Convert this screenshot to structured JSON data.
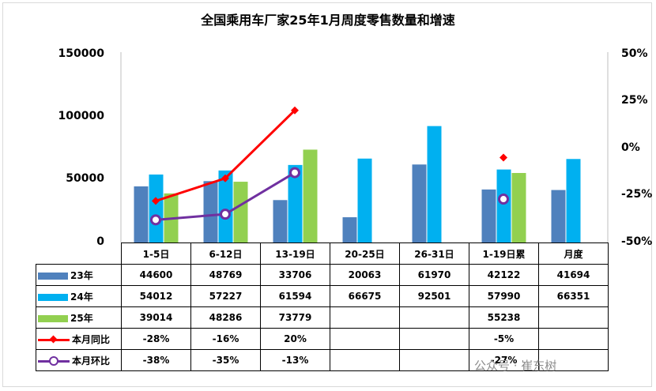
{
  "title": "全国乘用车厂家25年1月周度零售数量和增速",
  "colors": {
    "y23": "#4f81bd",
    "y24": "#00b0f0",
    "y25": "#92d050",
    "yoy": "#ff0000",
    "mom": "#7030a0"
  },
  "chart_data": {
    "type": "bar",
    "categories": [
      "1-5日",
      "6-12日",
      "13-19日",
      "20-25日",
      "26-31日",
      "1-19日累",
      "月度"
    ],
    "series": [
      {
        "name": "23年",
        "kind": "bar",
        "axis": "left",
        "values": [
          44600,
          48769,
          33706,
          20063,
          61970,
          42122,
          41694
        ],
        "labels": [
          "44600",
          "48769",
          "33706",
          "20063",
          "61970",
          "42122",
          "41694"
        ]
      },
      {
        "name": "24年",
        "kind": "bar",
        "axis": "left",
        "values": [
          54012,
          57227,
          61594,
          66675,
          92501,
          57990,
          66351
        ],
        "labels": [
          "54012",
          "57227",
          "61594",
          "66675",
          "92501",
          "57990",
          "66351"
        ]
      },
      {
        "name": "25年",
        "kind": "bar",
        "axis": "left",
        "values": [
          39014,
          48286,
          73779,
          null,
          null,
          55238,
          null
        ],
        "labels": [
          "39014",
          "48286",
          "73779",
          "",
          "",
          "55238",
          ""
        ]
      },
      {
        "name": "本月同比",
        "kind": "line",
        "axis": "right",
        "values": [
          -28,
          -16,
          20,
          null,
          null,
          -5,
          null
        ],
        "labels": [
          "-28%",
          "-16%",
          "20%",
          "",
          "",
          "-5%",
          ""
        ]
      },
      {
        "name": "本月环比",
        "kind": "line",
        "axis": "right",
        "values": [
          -38,
          -35,
          -13,
          null,
          null,
          -27,
          null
        ],
        "labels": [
          "-38%",
          "-35%",
          "-13%",
          "",
          "",
          "-27%",
          ""
        ]
      }
    ],
    "y_left": {
      "ticks": [
        "150000",
        "100000",
        "50000",
        "0"
      ],
      "range": [
        0,
        150000
      ]
    },
    "y_right": {
      "ticks": [
        "50%",
        "25%",
        "0%",
        "-25%",
        "-50%"
      ],
      "range": [
        -50,
        50
      ]
    },
    "grid": false,
    "legend": "table"
  },
  "watermark": "公众号 · 崔东树"
}
